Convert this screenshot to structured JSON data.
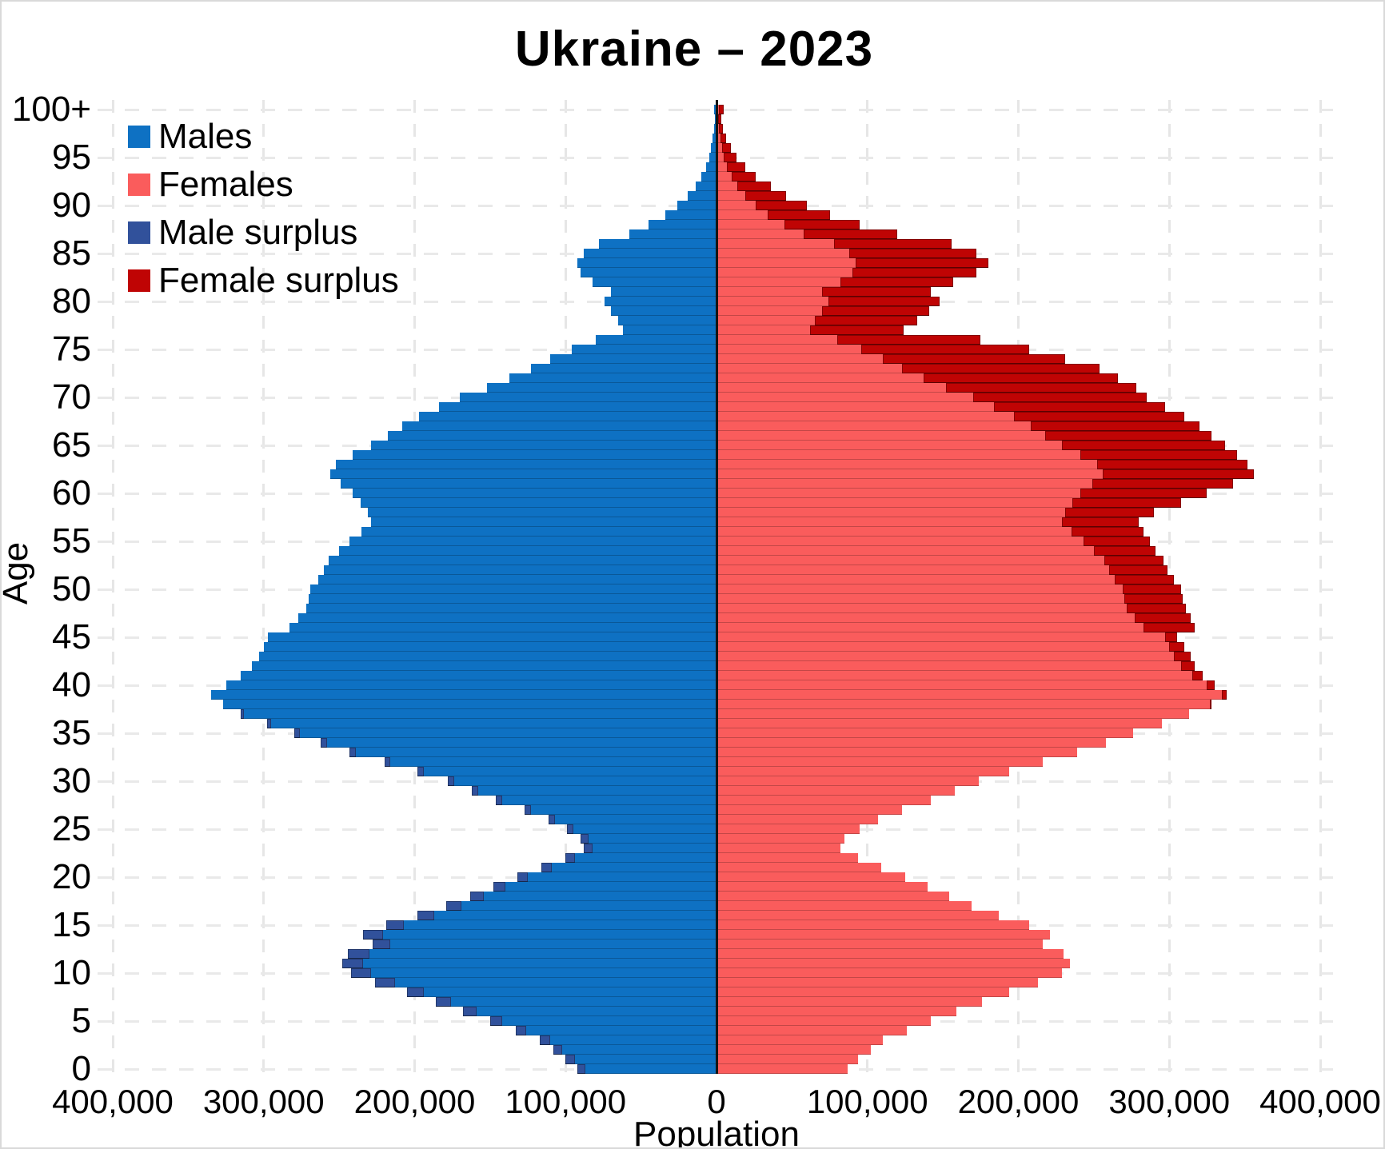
{
  "page": {
    "title": "Ukraine – 2023"
  },
  "chart_data": {
    "type": "bar",
    "subtype": "population-pyramid",
    "orientation": "horizontal",
    "title": "Ukraine – 2023",
    "xlabel": "Population",
    "ylabel": "Age",
    "grid": true,
    "legend_position": "top-left-inside",
    "x_axis": {
      "min": -400000,
      "max": 400000,
      "tick_step": 100000,
      "tick_labels": [
        "400,000",
        "300,000",
        "200,000",
        "100,000",
        "0",
        "100,000",
        "200,000",
        "300,000",
        "400,000"
      ]
    },
    "y_axis": {
      "age_min": 0,
      "age_max": 100,
      "tick_step": 5,
      "tick_labels": [
        "0",
        "5",
        "10",
        "15",
        "20",
        "25",
        "30",
        "35",
        "40",
        "45",
        "50",
        "55",
        "60",
        "65",
        "70",
        "75",
        "80",
        "85",
        "90",
        "95",
        "100+"
      ]
    },
    "legend": [
      {
        "label": "Males",
        "color": "#0e71c3"
      },
      {
        "label": "Females",
        "color": "#fa5c5c"
      },
      {
        "label": "Male surplus",
        "color": "#31519b"
      },
      {
        "label": "Female surplus",
        "color": "#bf0404"
      }
    ],
    "colors": {
      "males": "#0e71c3",
      "females": "#fa5c5c",
      "male_surplus": "#31519b",
      "female_surplus": "#bf0404",
      "center_axis": "#151515",
      "gridline": "#e8e8e8"
    },
    "ages": [
      0,
      1,
      2,
      3,
      4,
      5,
      6,
      7,
      8,
      9,
      10,
      11,
      12,
      13,
      14,
      15,
      16,
      17,
      18,
      19,
      20,
      21,
      22,
      23,
      24,
      25,
      26,
      27,
      28,
      29,
      30,
      31,
      32,
      33,
      34,
      35,
      36,
      37,
      38,
      39,
      40,
      41,
      42,
      43,
      44,
      45,
      46,
      47,
      48,
      49,
      50,
      51,
      52,
      53,
      54,
      55,
      56,
      57,
      58,
      59,
      60,
      61,
      62,
      63,
      64,
      65,
      66,
      67,
      68,
      69,
      70,
      71,
      72,
      73,
      74,
      75,
      76,
      77,
      78,
      79,
      80,
      81,
      82,
      83,
      84,
      85,
      86,
      87,
      88,
      89,
      90,
      91,
      92,
      93,
      94,
      95,
      96,
      97,
      98,
      99,
      100
    ],
    "series": [
      {
        "name": "Males",
        "values": [
          92000,
          100000,
          108000,
          117000,
          133000,
          150000,
          168000,
          186000,
          205000,
          226000,
          242000,
          248000,
          244000,
          228000,
          234000,
          219000,
          198000,
          179000,
          163000,
          148000,
          132000,
          116000,
          100000,
          88000,
          90000,
          99000,
          111000,
          127000,
          146000,
          162000,
          178000,
          198000,
          220000,
          243000,
          262000,
          280000,
          298000,
          315000,
          327000,
          335000,
          325000,
          315000,
          308000,
          303000,
          300000,
          297000,
          283000,
          277000,
          272000,
          270000,
          269000,
          264000,
          260000,
          257000,
          250000,
          243000,
          235000,
          229000,
          231000,
          236000,
          241000,
          249000,
          256000,
          252000,
          241000,
          229000,
          218000,
          208000,
          197000,
          184000,
          170000,
          152000,
          137000,
          123000,
          110000,
          96000,
          80000,
          62000,
          65000,
          70000,
          74000,
          70000,
          82000,
          90000,
          92000,
          88000,
          78000,
          58000,
          45000,
          34000,
          26000,
          19000,
          14000,
          10000,
          7000,
          5000,
          3500,
          2500,
          1700,
          1200,
          1500
        ]
      },
      {
        "name": "Females",
        "values": [
          87000,
          94000,
          102000,
          110000,
          126000,
          142000,
          159000,
          176000,
          194000,
          213000,
          229000,
          234000,
          230000,
          216000,
          221000,
          207000,
          187000,
          169000,
          154000,
          140000,
          125000,
          109000,
          94000,
          82000,
          85000,
          95000,
          107000,
          123000,
          142000,
          158000,
          174000,
          194000,
          216000,
          239000,
          258000,
          276000,
          295000,
          313000,
          328000,
          338000,
          330000,
          322000,
          317000,
          314000,
          310000,
          305000,
          317000,
          314000,
          311000,
          309000,
          308000,
          303000,
          299000,
          296000,
          291000,
          287000,
          283000,
          280000,
          290000,
          308000,
          325000,
          342000,
          356000,
          352000,
          345000,
          337000,
          328000,
          320000,
          310000,
          297000,
          285000,
          278000,
          266000,
          254000,
          231000,
          207000,
          175000,
          124000,
          133000,
          141000,
          148000,
          142000,
          157000,
          172000,
          180000,
          172000,
          156000,
          120000,
          95000,
          75000,
          60000,
          46000,
          36000,
          26000,
          19000,
          13500,
          9500,
          6500,
          4500,
          3000,
          5000
        ]
      }
    ]
  }
}
